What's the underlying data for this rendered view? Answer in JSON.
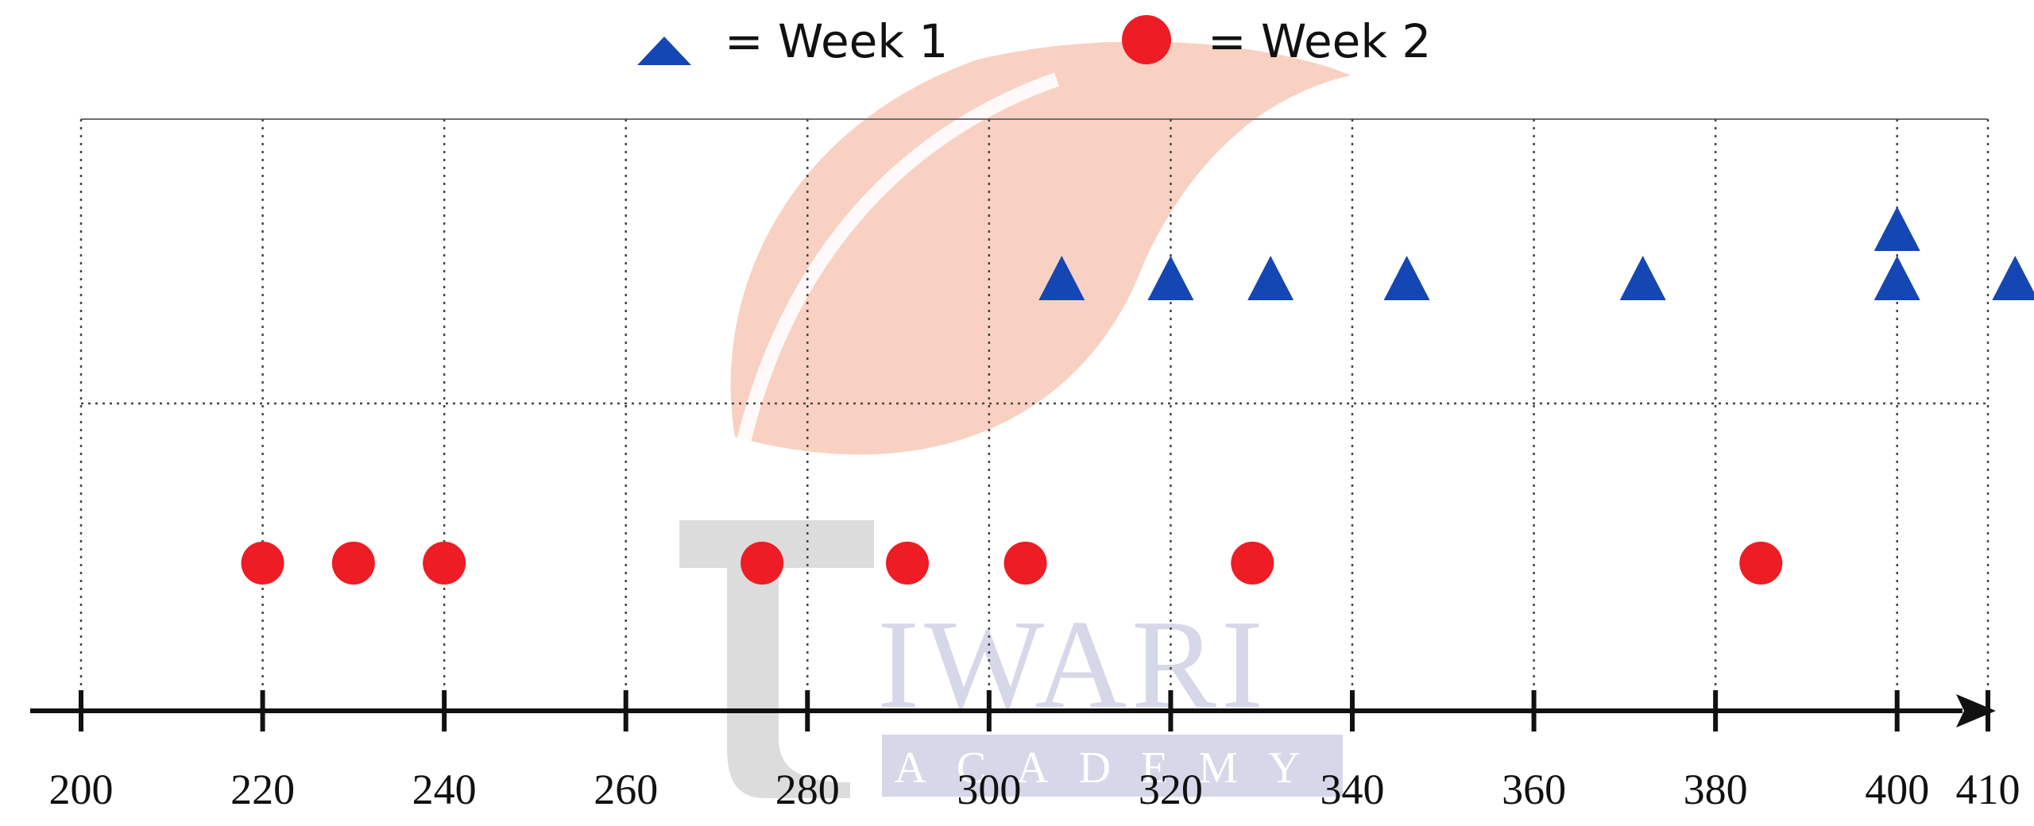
{
  "chart_data": {
    "type": "scatter",
    "title": "",
    "xlabel": "",
    "ylabel": "",
    "xlim": [
      200,
      410
    ],
    "x_ticks": [
      200,
      220,
      240,
      260,
      280,
      300,
      320,
      340,
      360,
      380,
      400,
      410
    ],
    "grid": true,
    "legend_position": "top-center",
    "series": [
      {
        "name": "Week 1",
        "marker": "triangle",
        "color": "#1446b4",
        "x": [
          308,
          320,
          331,
          346,
          372,
          400,
          400,
          413
        ],
        "level": [
          1,
          1,
          1,
          1,
          1,
          1,
          2,
          1
        ]
      },
      {
        "name": "Week 2",
        "marker": "circle",
        "color": "#ee1c24",
        "x": [
          220,
          230,
          240,
          275,
          291,
          304,
          329,
          385
        ],
        "level": [
          1,
          1,
          1,
          1,
          1,
          1,
          1,
          1
        ]
      }
    ]
  },
  "legend": {
    "week1_label": "= Week 1",
    "week2_label": "= Week 2"
  },
  "watermark": {
    "main_text": "IWARI",
    "sub_text": "ACADEMY",
    "leaf_color": "#f8c9b8",
    "t_color": "#d6d6d6",
    "text_color": "#cfd0e6"
  }
}
